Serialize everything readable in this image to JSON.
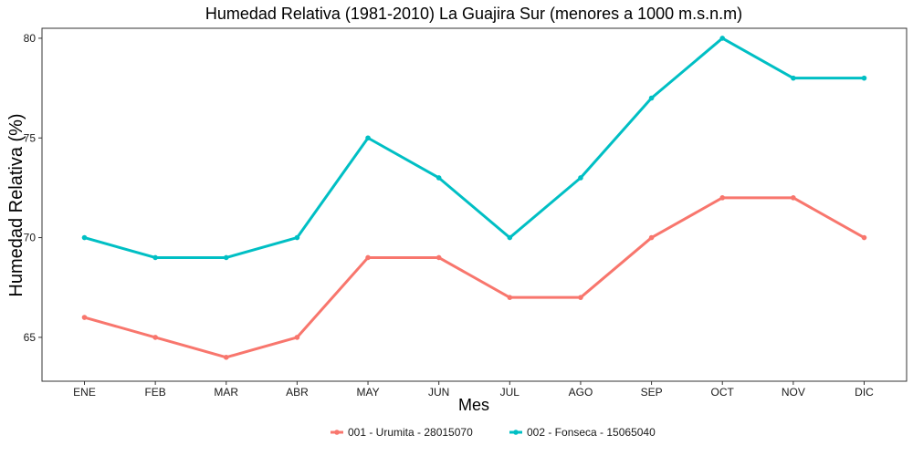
{
  "chart_data": {
    "type": "line",
    "title": "Humedad Relativa (1981-2010) La Guajira Sur (menores a 1000 m.s.n.m)",
    "xlabel": "Mes",
    "ylabel": "Humedad Relativa (%)",
    "categories": [
      "ENE",
      "FEB",
      "MAR",
      "ABR",
      "MAY",
      "JUN",
      "JUL",
      "AGO",
      "SEP",
      "OCT",
      "NOV",
      "DIC"
    ],
    "ylim": [
      62.8,
      80.5
    ],
    "yticks": [
      65,
      70,
      75,
      80
    ],
    "grid": false,
    "legend_position": "bottom",
    "series": [
      {
        "name": "001 - Urumita - 28015070",
        "color": "#F8766D",
        "values": [
          66,
          65,
          64,
          65,
          69,
          69,
          67,
          67,
          70,
          72,
          72,
          70
        ]
      },
      {
        "name": "002 - Fonseca - 15065040",
        "color": "#00BFC4",
        "values": [
          70,
          69,
          69,
          70,
          75,
          73,
          70,
          73,
          77,
          80,
          78,
          78
        ]
      }
    ]
  }
}
